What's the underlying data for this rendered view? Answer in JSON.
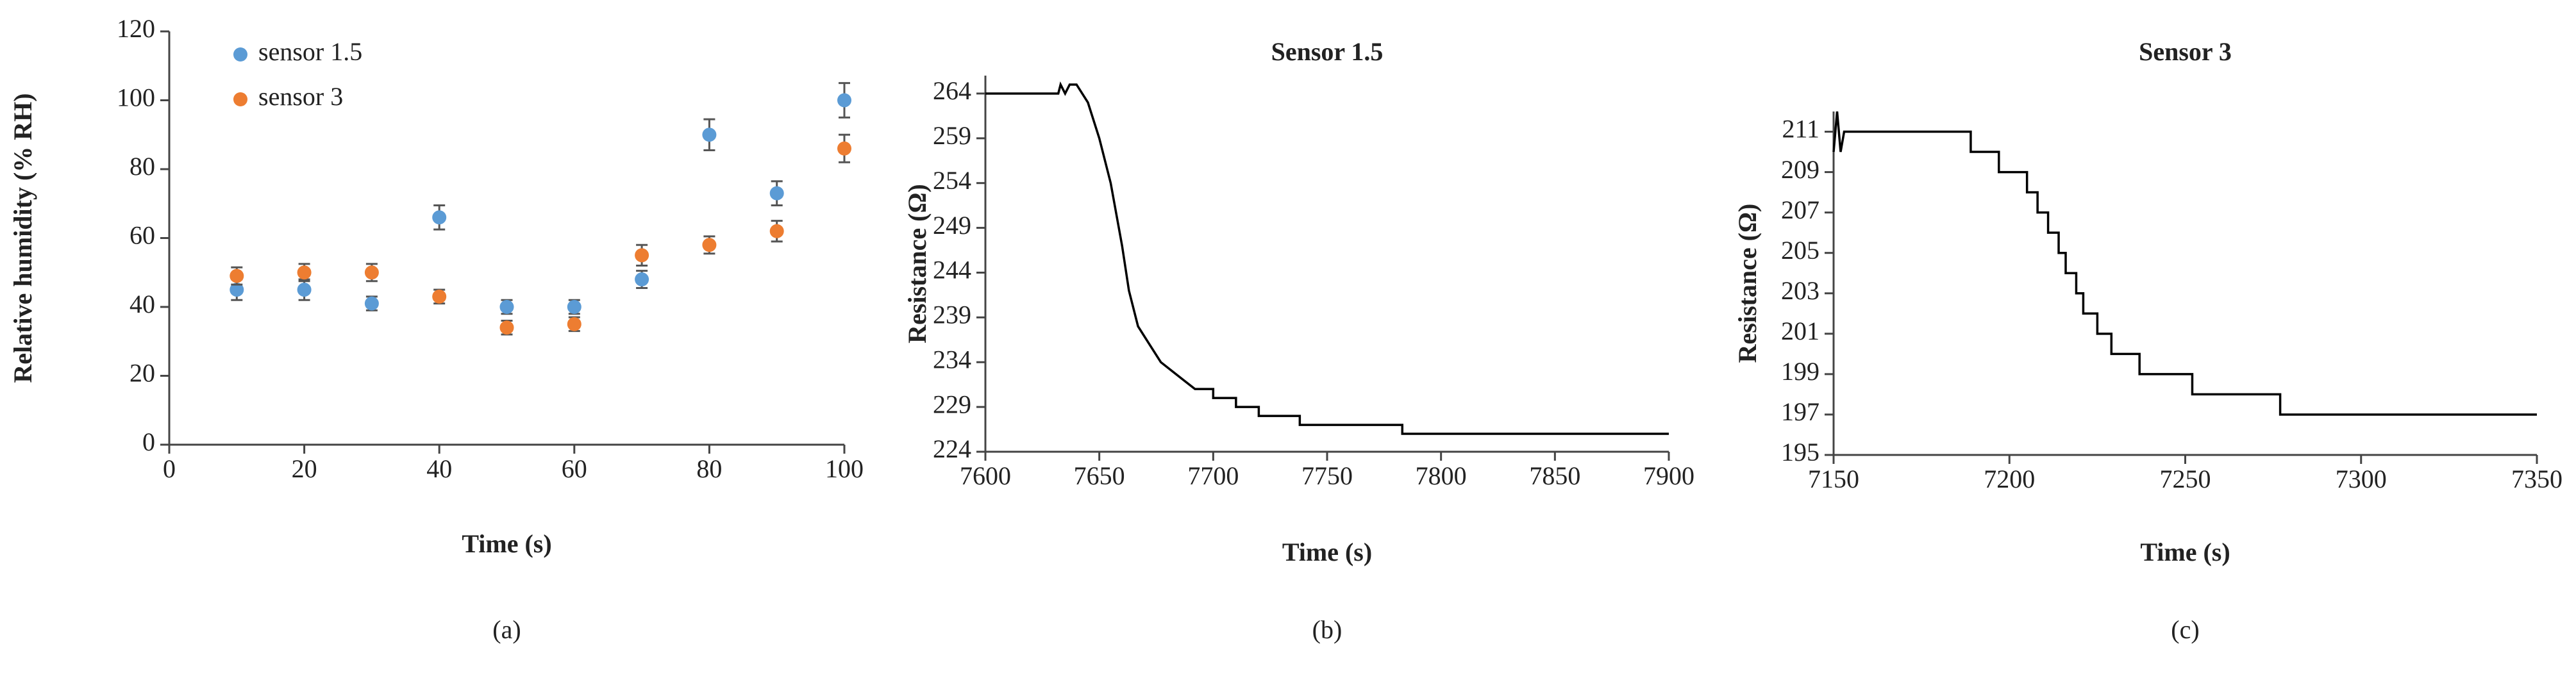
{
  "chart_data": [
    {
      "type": "scatter",
      "panel_label": "(a)",
      "xlabel": "Time (s)",
      "ylabel": "Relative humidity (% RH)",
      "xlim": [
        0,
        100
      ],
      "xticks": [
        0,
        20,
        40,
        60,
        80,
        100
      ],
      "ylim": [
        0,
        120
      ],
      "yticks": [
        0,
        20,
        40,
        60,
        80,
        100,
        120
      ],
      "legend": "upper left",
      "grid": false,
      "x": [
        10,
        20,
        30,
        40,
        50,
        60,
        70,
        80,
        90,
        100
      ],
      "series": [
        {
          "name": "sensor 1.5",
          "color": "#5b9bd5",
          "values": [
            45,
            45,
            41,
            66,
            40,
            40,
            48,
            90,
            73,
            100
          ],
          "errors": [
            3,
            3,
            2,
            3.5,
            2,
            2,
            2.5,
            4.5,
            3.5,
            5
          ]
        },
        {
          "name": "sensor 3",
          "color": "#ed7d31",
          "values": [
            49,
            50,
            50,
            43,
            34,
            35,
            55,
            58,
            62,
            86
          ],
          "errors": [
            2.5,
            2.5,
            2.5,
            2,
            2,
            2,
            3,
            2.5,
            3,
            4
          ]
        }
      ]
    },
    {
      "type": "line",
      "title": "Sensor 1.5",
      "panel_label": "(b)",
      "xlabel": "Time (s)",
      "ylabel": "Resistance (Ω)",
      "xlim": [
        7600,
        7900
      ],
      "xticks": [
        7600,
        7650,
        7700,
        7750,
        7800,
        7850,
        7900
      ],
      "ylim": [
        224,
        266
      ],
      "yticks": [
        224,
        229,
        234,
        239,
        244,
        249,
        254,
        259,
        264
      ],
      "grid": false,
      "color": "#000000",
      "x": [
        7600,
        7632,
        7633,
        7635,
        7637,
        7640,
        7645,
        7650,
        7655,
        7660,
        7663,
        7667,
        7672,
        7677,
        7682,
        7687,
        7692,
        7700,
        7700,
        7710,
        7710,
        7720,
        7720,
        7738,
        7738,
        7783,
        7783,
        7900
      ],
      "values": [
        264,
        264,
        265,
        264,
        265,
        265,
        263,
        259,
        254,
        247,
        242,
        238,
        236,
        234,
        233,
        232,
        231,
        231,
        230,
        230,
        229,
        229,
        228,
        228,
        227,
        227,
        226,
        226
      ]
    },
    {
      "type": "line",
      "title": "Sensor 3",
      "panel_label": "(c)",
      "xlabel": "Time (s)",
      "ylabel": "Resistance (Ω)",
      "xlim": [
        7150,
        7350
      ],
      "xticks": [
        7150,
        7200,
        7250,
        7300,
        7350
      ],
      "ylim": [
        195,
        212
      ],
      "yticks": [
        195,
        197,
        199,
        201,
        203,
        205,
        207,
        209,
        211
      ],
      "grid": false,
      "color": "#000000",
      "x": [
        7150,
        7151,
        7152,
        7153,
        7189,
        7189,
        7197,
        7197,
        7205,
        7205,
        7208,
        7208,
        7211,
        7211,
        7214,
        7214,
        7216,
        7216,
        7219,
        7219,
        7221,
        7221,
        7225,
        7225,
        7229,
        7229,
        7237,
        7237,
        7252,
        7252,
        7277,
        7277,
        7350
      ],
      "values": [
        210,
        212,
        210,
        211,
        211,
        210,
        210,
        209,
        209,
        208,
        208,
        207,
        207,
        206,
        206,
        205,
        205,
        204,
        204,
        203,
        203,
        202,
        202,
        201,
        201,
        200,
        200,
        199,
        199,
        198,
        198,
        197,
        197
      ]
    }
  ]
}
